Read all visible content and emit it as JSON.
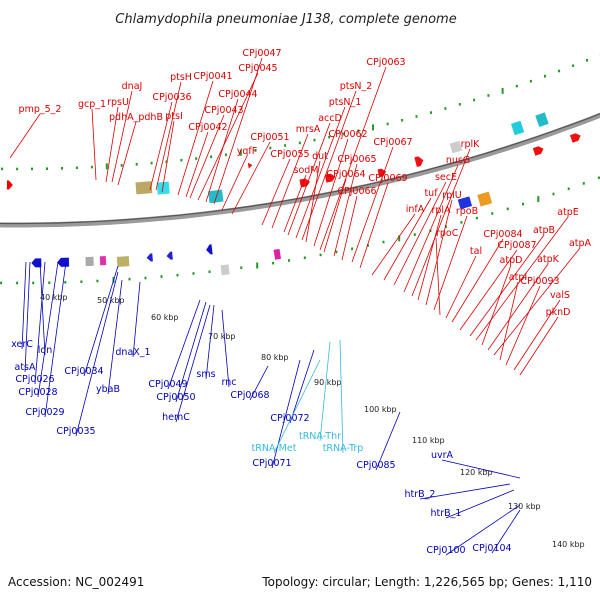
{
  "title": "Chlamydophila pneumoniae J138, complete genome",
  "accession": "Accession: NC_002491",
  "summary": "Topology: circular; Length: 1,226,565 bp; Genes: 1,110",
  "colors": {
    "forward_label": "#dd0000",
    "reverse_label": "#0000bb",
    "rna_label": "#33bbdd",
    "backbone": "#888888",
    "tick": "#229922"
  },
  "scale_labels": [
    "40 kbp",
    "50 kbp",
    "60 kbp",
    "70 kbp",
    "80 kbp",
    "90 kbp",
    "100 kbp",
    "110 kbp",
    "120 kbp",
    "130 kbp",
    "140 kbp"
  ],
  "forward_genes": [
    "pmp_5_2",
    "gcp_1",
    "rpsU",
    "dnaJ",
    "pdhA_pdhB",
    "CPj0036",
    "ptsH",
    "ptsI",
    "CPj0041",
    "CPj0042",
    "CPj0043",
    "CPj0045",
    "CPj0044",
    "CPj0047",
    "yqfF",
    "CPj0051",
    "CPj0055",
    "mrsA",
    "sodM",
    "accD",
    "ptsN_1",
    "ptsN_2",
    "dut",
    "CPj0062",
    "CPj0063",
    "CPj0064",
    "CPj0065",
    "CPj0066",
    "CPj0067",
    "CPj0069",
    "infA",
    "tuf",
    "secE",
    "nusG",
    "rplK",
    "rplA",
    "rplU",
    "rpoB",
    "rpoC",
    "tal",
    "CPj0084",
    "CPj0087",
    "atpB",
    "atpE",
    "atpD",
    "atpK",
    "atpA",
    "atpI",
    "CPj0093",
    "valS",
    "pknD"
  ],
  "reverse_genes": [
    "xerC",
    "atsA",
    "lon",
    "CPj0026",
    "CPj0028",
    "CPj0029",
    "CPj0034",
    "CPj0035",
    "ybaB",
    "dnaX_1",
    "CPj0049",
    "CPj0050",
    "hemC",
    "sms",
    "rnc",
    "CPj0068",
    "CPj0072",
    "CPj0071",
    "CPj0085",
    "uvrA",
    "htrB_2",
    "htrB_1",
    "CPj0100",
    "CPj0104"
  ],
  "rna_genes": [
    "tRNA-Met",
    "tRNA-Thr",
    "tRNA-Trp"
  ]
}
